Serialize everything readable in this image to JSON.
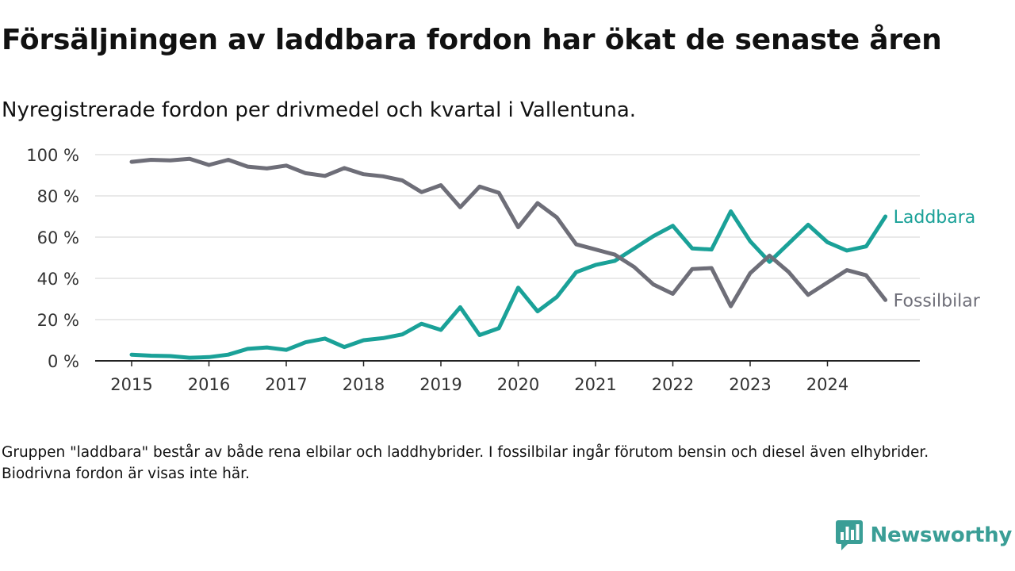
{
  "title": "Försäljningen av laddbara fordon har ökat de senaste åren",
  "subtitle": "Nyregistrerade fordon per drivmedel och kvartal i Vallentuna.",
  "footnote": "Gruppen \"laddbara\" består av både rena elbilar och laddhybrider. I fossilbilar ingår förutom bensin och diesel även elhybrider. Biodrivna fordon är visas inte här.",
  "brand": {
    "name": "Newsworthy",
    "color": "#3a9e96",
    "icon": "newsworthy-logo-icon"
  },
  "chart_data": {
    "type": "line",
    "title": "Försäljningen av laddbara fordon har ökat de senaste åren",
    "subtitle": "Nyregistrerade fordon per drivmedel och kvartal i Vallentuna.",
    "xlabel": "",
    "ylabel": "",
    "x_start_year": 2015,
    "quarters_per_year": 4,
    "xlim": [
      2015,
      2025
    ],
    "ylim": [
      0,
      100
    ],
    "y_ticks": [
      0,
      20,
      40,
      60,
      80,
      100
    ],
    "y_tick_labels": [
      "0 %",
      "20 %",
      "40 %",
      "60 %",
      "80 %",
      "100 %"
    ],
    "x_ticks": [
      "2015",
      "2016",
      "2017",
      "2018",
      "2019",
      "2020",
      "2021",
      "2022",
      "2023",
      "2024"
    ],
    "grid": "horizontal",
    "legend": "direct labels at line ends",
    "series": [
      {
        "name": "Laddbara",
        "color": "#1aa198",
        "values": [
          3,
          2.5,
          2.3,
          1.5,
          1.8,
          3,
          5.8,
          6.5,
          5.3,
          9,
          10.8,
          6.7,
          10,
          11,
          12.8,
          18,
          15,
          26,
          12.5,
          15.8,
          35.5,
          24,
          31,
          43,
          46.5,
          48.5,
          54.5,
          60.5,
          65.5,
          54.5,
          54,
          72.5,
          58,
          48,
          57,
          66,
          57.5,
          53.5,
          55.5,
          70
        ]
      },
      {
        "name": "Fossilbilar",
        "color": "#6e6e78",
        "values": [
          96.5,
          97.5,
          97.2,
          98,
          95,
          97.5,
          94.2,
          93.3,
          94.7,
          91,
          89.7,
          93.5,
          90.5,
          89.5,
          87.5,
          81.8,
          85.2,
          74.5,
          84.5,
          81.5,
          64.8,
          76.5,
          69.5,
          56.5,
          54,
          51.5,
          45.5,
          37,
          32.5,
          44.5,
          45,
          26.5,
          42.5,
          51,
          43,
          32,
          38,
          44,
          41.5,
          29.5
        ]
      }
    ]
  }
}
